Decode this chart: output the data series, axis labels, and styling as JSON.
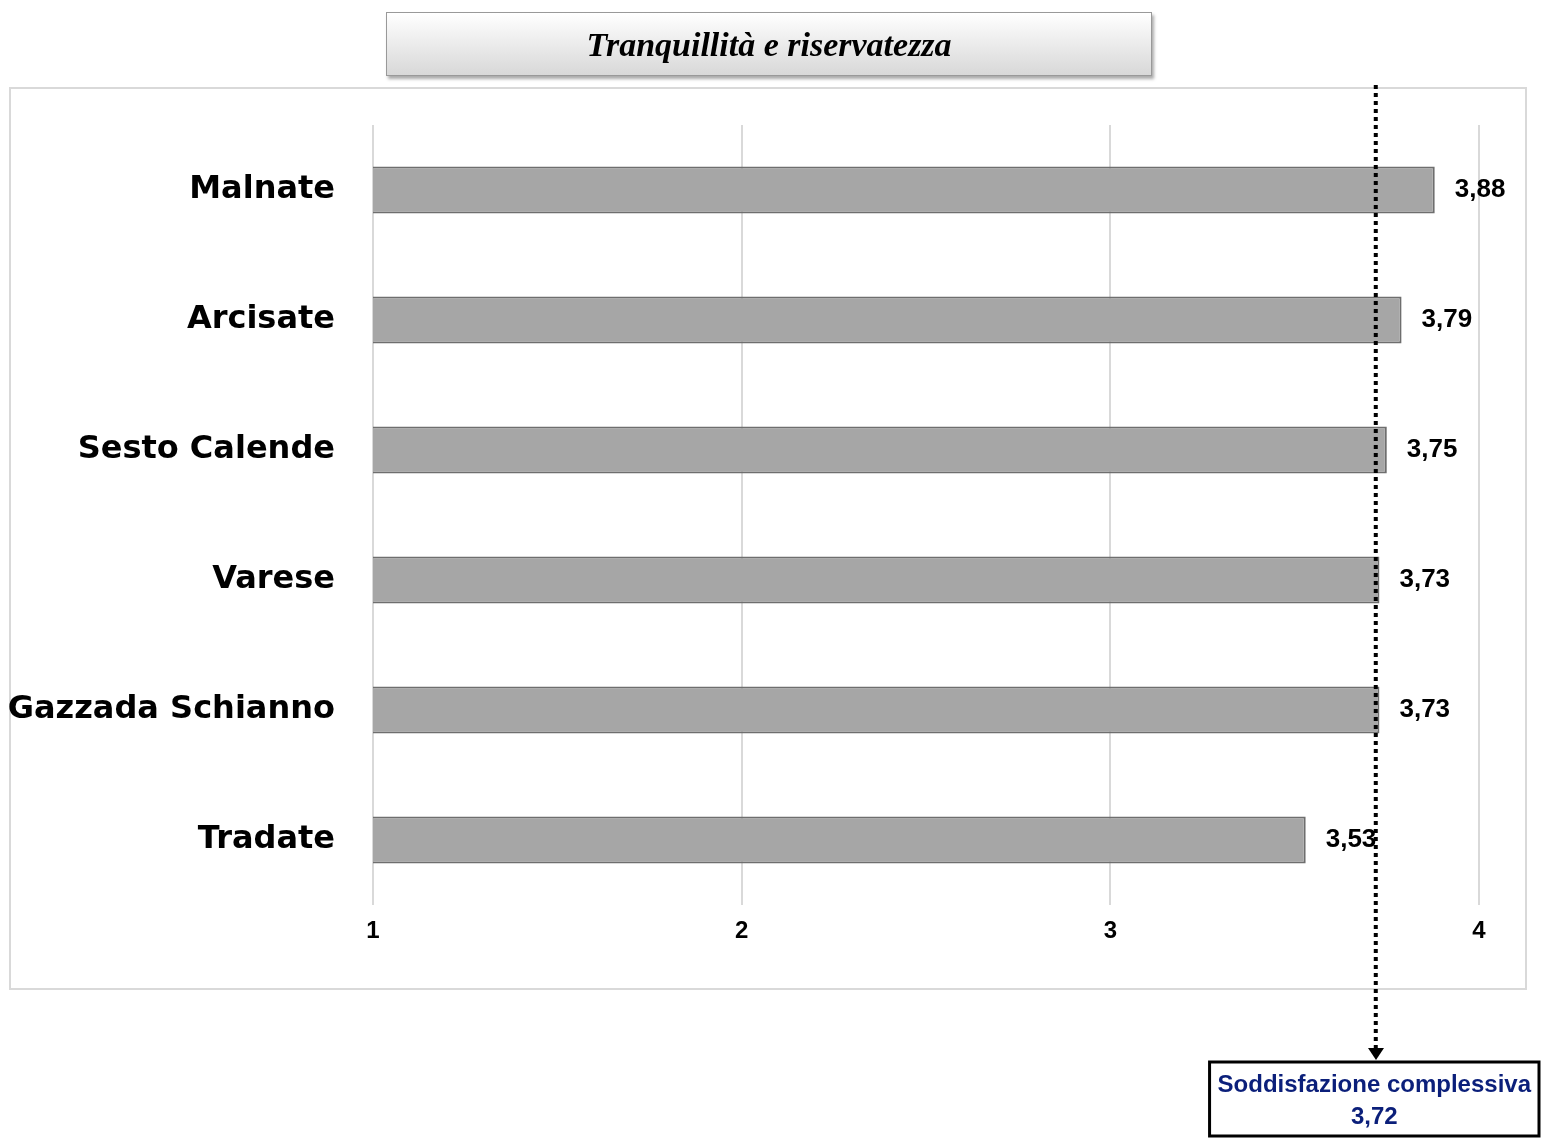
{
  "chart_data": {
    "type": "bar",
    "orientation": "horizontal",
    "title": "Tranquillità e riservatezza",
    "categories": [
      "Malnate",
      "Arcisate",
      "Sesto Calende",
      "Varese",
      "Gazzada Schianno",
      "Tradate"
    ],
    "values": [
      3.88,
      3.79,
      3.75,
      3.73,
      3.73,
      3.53
    ],
    "value_labels": [
      "3,88",
      "3,79",
      "3,75",
      "3,73",
      "3,73",
      "3,53"
    ],
    "color": "#a6a6a6",
    "xlim": [
      1,
      4
    ],
    "xticks": [
      1,
      2,
      3,
      4
    ],
    "grid": "x",
    "ref_lines": [
      {
        "axis": "x",
        "value": 3.72,
        "label": "Soddisfazione complessiva\n3,72",
        "color": "#000000",
        "line_style": "dotted"
      }
    ]
  }
}
